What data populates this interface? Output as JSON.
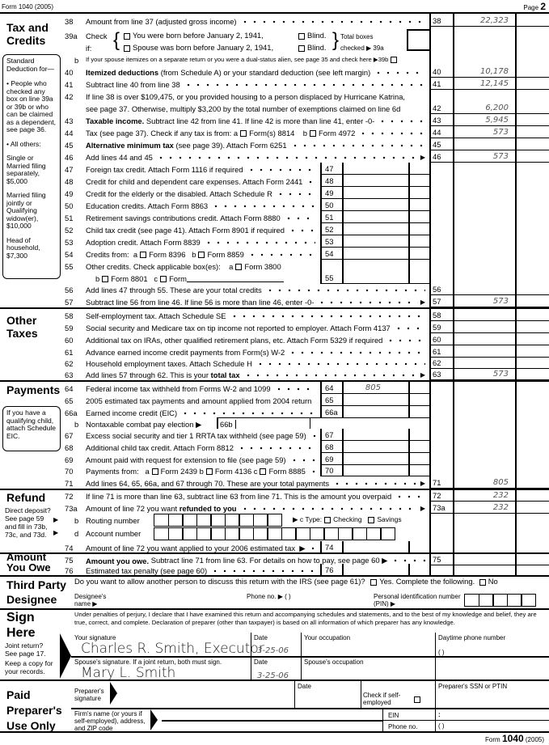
{
  "header": {
    "form": "Form 1040 (2005)",
    "page_label": "Page",
    "page_num": "2"
  },
  "sections": {
    "tax": "Tax and Credits",
    "other": "Other Taxes",
    "payments": "Payments",
    "refund": "Refund",
    "owe": "Amount You Owe",
    "designee": "Third Party Designee",
    "sign": "Sign Here",
    "preparer": "Paid Preparer's Use Only"
  },
  "std_deduction": {
    "title": "Standard Deduction for—",
    "people": "• People who checked any box on line 39a or 39b or who can be claimed as a dependent, see page 36.",
    "all": "• All others:",
    "single": "Single or Married filing separately, $5,000",
    "mfj": "Married filing jointly or Qualifying widow(er), $10,000",
    "hoh": "Head of household, $7,300"
  },
  "eic_note": "If you have a qualifying child, attach Schedule EIC.",
  "refund_note": "Direct deposit? See page 59 and fill in 73b, 73c, and 73d.",
  "line39a": {
    "num": "39a",
    "check": "Check",
    "if": "if:",
    "you": "You were born before January 2, 1941,",
    "spouse": "Spouse was born before January 2, 1941,",
    "blind": "Blind.",
    "total1": "Total boxes",
    "total2": "checked ▶  39a",
    "you_checked": false,
    "spouse_checked": false,
    "you_blind": false,
    "spouse_blind": false
  },
  "lines": [
    {
      "num": "38",
      "segs": [
        "Amount from line 37 (adjusted gross income)"
      ],
      "value": "22,323"
    },
    {
      "num": "b",
      "segs": [
        "If your spouse itemizes on a separate return or you were a dual-status alien, see page 35 and check here ▶39b",
        {
          "checkbox": false
        }
      ]
    },
    {
      "num": "40",
      "segs": [
        {
          "b": "Itemized deductions"
        },
        " (from Schedule A) or your standard deduction (see left margin)"
      ],
      "value": "10,178"
    },
    {
      "num": "41",
      "segs": [
        "Subtract line 40 from line 38"
      ],
      "value": "12,145"
    },
    {
      "num": "42",
      "segs": [
        "If line 38 is over $109,475, or you provided housing to a person displaced by Hurricane Katrina,"
      ],
      "segs2": [
        "see page 37. Otherwise, multiply $3,200 by the total number of exemptions claimed on line 6d"
      ],
      "value": "6,200"
    },
    {
      "num": "43",
      "segs": [
        {
          "b": "Taxable income."
        },
        " Subtract line 42 from line 41. If line 42 is more than line 41, enter -0-"
      ],
      "value": "5,945"
    },
    {
      "num": "44",
      "segs": [
        "Tax (see page 37). Check if any tax is from: a",
        {
          "checkbox": false
        },
        "Form(s) 8814    b",
        {
          "checkbox": false
        },
        "Form 4972"
      ],
      "value": "573"
    },
    {
      "num": "45",
      "segs": [
        {
          "b": "Alternative minimum tax"
        },
        " (see page 39). Attach Form 6251"
      ]
    },
    {
      "num": "46",
      "segs": [
        "Add lines 44 and 45"
      ],
      "arrow": "▶",
      "value": "573"
    },
    {
      "num": "47",
      "segs": [
        "Foreign tax credit. Attach Form 1116 if required"
      ]
    },
    {
      "num": "48",
      "segs": [
        "Credit for child and dependent care expenses. Attach Form 2441"
      ]
    },
    {
      "num": "49",
      "segs": [
        "Credit for the elderly or the disabled. Attach Schedule R"
      ]
    },
    {
      "num": "50",
      "segs": [
        "Education credits. Attach Form 8863"
      ]
    },
    {
      "num": "51",
      "segs": [
        "Retirement savings contributions credit. Attach Form 8880"
      ]
    },
    {
      "num": "52",
      "segs": [
        "Child tax credit (see page 41). Attach Form 8901 if required"
      ]
    },
    {
      "num": "53",
      "segs": [
        "Adoption credit. Attach Form 8839"
      ]
    },
    {
      "num": "54",
      "segs": [
        "Credits from:  a",
        {
          "checkbox": false
        },
        "Form 8396   b",
        {
          "checkbox": false
        },
        "Form 8859"
      ]
    },
    {
      "num": "55",
      "segs": [
        "Other credits. Check applicable box(es):    a",
        {
          "checkbox": false
        },
        "Form 3800"
      ],
      "segs2": [
        "b",
        {
          "checkbox": false
        },
        "Form 8801   c",
        {
          "checkbox": false
        },
        "Form"
      ]
    },
    {
      "num": "56",
      "segs": [
        "Add lines 47 through 55. These are your total credits"
      ]
    },
    {
      "num": "57",
      "segs": [
        "Subtract line 56 from line 46. If line 56 is more than line 46, enter -0-"
      ],
      "arrow": "▶",
      "value": "573"
    },
    {
      "num": "58",
      "segs": [
        "Self-employment tax. Attach Schedule SE"
      ]
    },
    {
      "num": "59",
      "segs": [
        "Social security and Medicare tax on tip income not reported to employer. Attach Form 4137"
      ]
    },
    {
      "num": "60",
      "segs": [
        "Additional tax on IRAs, other qualified retirement plans, etc. Attach Form 5329 if required"
      ]
    },
    {
      "num": "61",
      "segs": [
        "Advance earned income credit payments from Form(s) W-2"
      ]
    },
    {
      "num": "62",
      "segs": [
        "Household employment taxes. Attach Schedule H"
      ]
    },
    {
      "num": "63",
      "segs": [
        "Add lines 57 through 62. This is your ",
        {
          "b": "total tax"
        }
      ],
      "arrow": "▶",
      "value": "573"
    },
    {
      "num": "64",
      "segs": [
        "Federal income tax withheld from Forms W-2 and 1099"
      ],
      "value": "805"
    },
    {
      "num": "65",
      "segs": [
        "2005 estimated tax payments and amount applied from 2004 return"
      ]
    },
    {
      "num": "66a",
      "segs": [
        "Earned income credit (EIC)"
      ]
    },
    {
      "num": "b",
      "segs": [
        "Nontaxable combat pay election ▶"
      ],
      "box": "66b"
    },
    {
      "num": "67",
      "segs": [
        "Excess social security and tier 1 RRTA tax withheld (see page 59)"
      ]
    },
    {
      "num": "68",
      "segs": [
        "Additional child tax credit. Attach Form 8812"
      ]
    },
    {
      "num": "69",
      "segs": [
        "Amount paid with request for extension to file (see page 59)"
      ]
    },
    {
      "num": "70",
      "segs": [
        "Payments from:   a",
        {
          "checkbox": false
        },
        "Form 2439 b",
        {
          "checkbox": false
        },
        "Form 4136 c",
        {
          "checkbox": false
        },
        "Form 8885"
      ]
    },
    {
      "num": "71",
      "segs": [
        "Add lines 64, 65, 66a, and 67 through 70. These are your total payments"
      ],
      "arrow": "▶",
      "value": "805"
    },
    {
      "num": "72",
      "segs": [
        "If line 71 is more than line 63, subtract line 63 from line 71. This is the amount you overpaid"
      ],
      "value": "232"
    },
    {
      "num": "73a",
      "segs": [
        "Amount of line 72 you want ",
        {
          "b": "refunded to you"
        }
      ],
      "arrow": "▶",
      "value": "232"
    },
    {
      "num": "74",
      "segs": [
        "Amount of line 72 you want applied to your 2006 estimated tax  ▶"
      ]
    },
    {
      "num": "75",
      "segs": [
        {
          "b": "Amount you owe."
        },
        " Subtract line 71 from line 63. For details on how to pay, see page 60 ▶"
      ]
    },
    {
      "num": "76",
      "segs": [
        "Estimated tax penalty (see page 60)"
      ]
    }
  ],
  "direct_deposit": {
    "b": "b",
    "routing": "Routing number",
    "c_type": "▶ c Type:",
    "checking": "Checking",
    "savings": "Savings",
    "d": "d",
    "account": "Account number",
    "routing_value": "",
    "account_value": ""
  },
  "designee": {
    "question": "Do you want to allow another person to discuss this return with the IRS (see page 61)?",
    "yes": "Yes. Complete the following.",
    "no": "No",
    "name_label": "Designee's name ▶",
    "phone_label": "Phone no. ▶  (      )",
    "pin_label": "Personal identification number (PIN)  ▶"
  },
  "sign": {
    "perjury": "Under penalties of perjury, I declare that I have examined this return and accompanying schedules and statements, and to the best of my knowledge and belief, they are true, correct, and complete. Declaration of preparer (other than taxpayer) is based on all information of which preparer has any knowledge.",
    "joint": "Joint return? See page 17.",
    "keep": "Keep a copy for your records.",
    "your_sig_label": "Your signature",
    "your_sig": "Charles R. Smith, Executor",
    "date_label": "Date",
    "your_date": "3-25-06",
    "occupation_label": "Your occupation",
    "phone_label": "Daytime phone number",
    "phone_parens": "(      )",
    "spouse_sig_label": "Spouse's signature. If a joint return, both must sign.",
    "spouse_sig": "Mary L. Smith",
    "spouse_date": "3-25-06",
    "spouse_occ_label": "Spouse's occupation"
  },
  "preparer": {
    "sig_label": "Preparer's signature",
    "date_label": "Date",
    "self_employed": "Check if self-employed",
    "ssn_label": "Preparer's SSN or PTIN",
    "firm_label": "Firm's name (or yours if self-employed), address, and ZIP code",
    "ein": "EIN",
    "ein_colon": ":",
    "phone": "Phone no.",
    "phone_parens": "(      )"
  },
  "footer": {
    "form": "Form",
    "num": "1040",
    "year": "(2005)"
  }
}
